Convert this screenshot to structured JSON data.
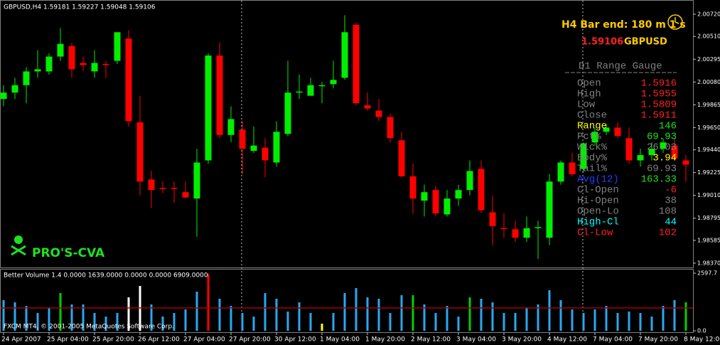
{
  "chart_data": [
    {
      "type": "candlestick",
      "title": "GBPUSD,H4  1.59181 1.59227 1.59048 1.59106",
      "categories": [
        "24 Apr 2007",
        null,
        null,
        null,
        "25 Apr 04:00",
        null,
        null,
        null,
        "25 Apr 20:00",
        null,
        null,
        null,
        "26 Apr 12:00",
        null,
        null,
        null,
        "27 Apr 04:00",
        null,
        null,
        null,
        "27 Apr 20:00",
        null,
        null,
        null,
        "30 Apr 12:00",
        null,
        null,
        null,
        "1 May 04:00",
        null,
        null,
        null,
        "1 May 20:00",
        null,
        null,
        null,
        "2 May 12:00",
        null,
        null,
        null,
        "3 May 04:00",
        null,
        null,
        null,
        "3 May 20:00",
        null,
        null,
        null,
        "4 May 12:00",
        null,
        null,
        null,
        "7 May 04:00",
        null,
        null,
        null,
        "7 May 20:00",
        null,
        null,
        null,
        "8 May 12:00"
      ],
      "open": [
        1.9992,
        1.9998,
        2.0005,
        2.0018,
        2.0018,
        2.0032,
        2.0042,
        2.0026,
        2.0018,
        2.0025,
        2.0028,
        2.0049,
        1.997,
        1.9916,
        1.9908,
        1.9908,
        1.9904,
        1.9898,
        1.9934,
        2.0033,
        1.9958,
        1.9963,
        1.9943,
        1.9946,
        1.9932,
        1.9959,
        1.9998,
        1.9995,
        2.0004,
        2.0006,
        2.0012,
        2.0062,
        1.9986,
        1.9981,
        1.9975,
        1.9953,
        1.9919,
        1.9896,
        1.9906,
        1.9883,
        1.9898,
        1.9906,
        1.9926,
        1.9885,
        1.987,
        1.9869,
        1.9861,
        1.987,
        1.9861,
        1.9914,
        1.9932,
        1.9926,
        1.9951,
        1.9961,
        1.9965,
        1.9955,
        1.9934,
        1.9939,
        1.9945,
        1.9948,
        1.9934
      ],
      "high": [
        2.0005,
        2.0012,
        2.0022,
        2.0038,
        2.0035,
        2.0059,
        2.0045,
        2.0032,
        2.0038,
        2.0028,
        2.0055,
        2.0057,
        1.9995,
        1.9924,
        1.9914,
        1.9914,
        1.9914,
        1.9945,
        2.0035,
        2.0045,
        1.9985,
        1.9971,
        1.9966,
        1.9955,
        1.9971,
        2.0028,
        2.0015,
        2.0012,
        2.0008,
        2.0028,
        2.0071,
        2.0064,
        1.9998,
        1.9992,
        1.9978,
        1.9961,
        1.9931,
        1.9911,
        1.991,
        1.9906,
        1.9911,
        1.9934,
        1.9934,
        1.9901,
        1.9884,
        1.9877,
        1.9881,
        1.9877,
        1.9921,
        1.9934,
        1.9941,
        1.9951,
        1.9965,
        1.9968,
        1.997,
        1.9965,
        1.9945,
        1.9951,
        1.9955,
        1.9955,
        1.9939
      ],
      "low": [
        1.9985,
        1.9992,
        1.9988,
        2.0012,
        2.0015,
        2.0028,
        2.0012,
        2.0018,
        2.0012,
        2.0012,
        2.0025,
        1.9966,
        1.9901,
        1.9889,
        1.9903,
        1.9894,
        1.9898,
        1.9862,
        1.9931,
        1.9955,
        1.9951,
        1.9921,
        1.9941,
        1.9918,
        1.9928,
        1.9957,
        1.9992,
        1.9995,
        1.9988,
        2.0002,
        2.001,
        1.9986,
        1.9981,
        1.9971,
        1.9951,
        1.9918,
        1.9884,
        1.9881,
        1.9881,
        1.9881,
        1.9891,
        1.9901,
        1.9884,
        1.9854,
        1.9861,
        1.9857,
        1.9857,
        1.9841,
        1.9854,
        1.9911,
        1.9919,
        1.9923,
        1.9948,
        1.9958,
        1.9955,
        1.9931,
        1.9928,
        1.9934,
        1.9941,
        1.9934,
        1.9914
      ],
      "close": [
        1.9998,
        2.0005,
        2.0018,
        2.002,
        2.0032,
        2.0044,
        2.002,
        2.0024,
        2.0026,
        2.0024,
        2.0055,
        1.9971,
        1.9914,
        1.9906,
        1.9907,
        1.9907,
        1.9899,
        1.9932,
        2.0033,
        1.9958,
        1.9973,
        1.9945,
        1.9948,
        1.9934,
        1.9961,
        1.9998,
        1.9999,
        2.0005,
        2.0005,
        2.001,
        2.0055,
        1.9988,
        1.9983,
        1.9975,
        1.9955,
        1.9919,
        1.9898,
        1.9904,
        1.9884,
        1.9898,
        1.9906,
        1.9924,
        1.9887,
        1.9872,
        1.9869,
        1.9861,
        1.987,
        1.9871,
        1.9914,
        1.9932,
        1.9921,
        1.995,
        1.9961,
        1.9965,
        1.9957,
        1.9934,
        1.9939,
        1.9945,
        1.9951,
        1.9936,
        1.993
      ],
      "up_color": "#00ee00",
      "down_color": "#ff0000",
      "ylim": [
        1.98336,
        2.00834
      ],
      "yticks": [
        {
          "value": 2.0072,
          "label": "2.00720"
        },
        {
          "value": 2.0051,
          "label": "2.00510"
        },
        {
          "value": 2.00295,
          "label": "2.00295"
        },
        {
          "value": 2.0008,
          "label": "2.00080"
        },
        {
          "value": 1.99865,
          "label": "1.99865"
        },
        {
          "value": 1.9965,
          "label": "1.99650"
        },
        {
          "value": 1.9944,
          "label": "1.99440"
        },
        {
          "value": 1.99225,
          "label": "1.99225"
        },
        {
          "value": 1.9901,
          "label": "1.99010"
        },
        {
          "value": 1.98795,
          "label": "1.98795"
        },
        {
          "value": 1.98585,
          "label": "1.98585"
        },
        {
          "value": 1.9837,
          "label": "1.98370"
        }
      ],
      "timer": "H4 Bar end: 180 m 1 s",
      "price": "1.59106",
      "symbol": "GBPUSD",
      "gauge_title": "D1 Range Gauge",
      "gauge": [
        {
          "label": "Open",
          "value": "1.5916",
          "label_color": "#808080",
          "value_color": "#ff2020"
        },
        {
          "label": "High",
          "value": "1.5955",
          "label_color": "#808080",
          "value_color": "#ff2020"
        },
        {
          "label": "Low",
          "value": "1.5809",
          "label_color": "#808080",
          "value_color": "#ff2020"
        },
        {
          "label": "Close",
          "value": "1.5911",
          "label_color": "#808080",
          "value_color": "#ff2020"
        },
        {
          "label": "Range",
          "value": "146",
          "label_color": "#ffff00",
          "value_color": "#20e020"
        },
        {
          "label": "Pct%",
          "value": "69.93",
          "label_color": "#808080",
          "value_color": "#20e020"
        },
        {
          "label": "Wick%",
          "value": "26.03",
          "label_color": "#808080",
          "value_color": "#808080"
        },
        {
          "label": "Body%",
          "value": "3.94",
          "label_color": "#808080",
          "value_color": "#ffff00"
        },
        {
          "label": "Tail%",
          "value": "69.93",
          "label_color": "#808080",
          "value_color": "#808080"
        },
        {
          "label": "Avg(12)",
          "value": "163.33",
          "label_color": "#2040ff",
          "value_color": "#20e020"
        },
        {
          "label": "Cl-Open",
          "value": "-6",
          "label_color": "#808080",
          "value_color": "#ff2020"
        },
        {
          "label": "Hi-Open",
          "value": "38",
          "label_color": "#808080",
          "value_color": "#808080"
        },
        {
          "label": "Open-Lo",
          "value": "108",
          "label_color": "#808080",
          "value_color": "#808080"
        },
        {
          "label": "High-Cl",
          "value": "44",
          "label_color": "#00ffff",
          "value_color": "#00ffff"
        },
        {
          "label": "Cl-Low",
          "value": "102",
          "label_color": "#ff2020",
          "value_color": "#ff2020"
        }
      ],
      "brand": "PRO'S-CVA"
    },
    {
      "type": "bar",
      "title": "Better Volume 1.4 0.0000 1639.0000 0.0000 0.0000 6909.0000",
      "values": [
        1379,
        1283,
        1122,
        802,
        1058,
        1700,
        1187,
        1187,
        802,
        641,
        802,
        1507,
        2020,
        1187,
        641,
        802,
        962,
        1764,
        2566,
        1443,
        1122,
        802,
        641,
        1700,
        1443,
        866,
        1283,
        802,
        321,
        802,
        1700,
        1924,
        1507,
        1443,
        802,
        1604,
        1604,
        1187,
        802,
        1122,
        641,
        1507,
        1443,
        1283,
        802,
        802,
        1058,
        1187,
        1828,
        1379,
        962,
        802,
        962,
        1122,
        802,
        866,
        802,
        641,
        1122,
        1379,
        1283
      ],
      "colors": [
        "#2aa8f0",
        "#2aa8f0",
        "#2aa8f0",
        "#2aa8f0",
        "#2aa8f0",
        "#00d000",
        "#2aa8f0",
        "#2aa8f0",
        "#2aa8f0",
        "#2aa8f0",
        "#2aa8f0",
        "#ffffff",
        "#ffffff",
        "#2aa8f0",
        "#2aa8f0",
        "#2aa8f0",
        "#2aa8f0",
        "#2aa8f0",
        "#ff0000",
        "#2aa8f0",
        "#2aa8f0",
        "#2aa8f0",
        "#2aa8f0",
        "#2aa8f0",
        "#2aa8f0",
        "#2aa8f0",
        "#2aa8f0",
        "#2aa8f0",
        "#ffff00",
        "#2aa8f0",
        "#2aa8f0",
        "#2aa8f0",
        "#2aa8f0",
        "#2aa8f0",
        "#2aa8f0",
        "#2aa8f0",
        "#00d000",
        "#2aa8f0",
        "#2aa8f0",
        "#2aa8f0",
        "#2aa8f0",
        "#00d000",
        "#2aa8f0",
        "#2aa8f0",
        "#2aa8f0",
        "#2aa8f0",
        "#2aa8f0",
        "#2aa8f0",
        "#2aa8f0",
        "#2aa8f0",
        "#2aa8f0",
        "#2aa8f0",
        "#2aa8f0",
        "#2aa8f0",
        "#2aa8f0",
        "#2aa8f0",
        "#2aa8f0",
        "#2aa8f0",
        "#2aa8f0",
        "#2aa8f0",
        "#00d000"
      ],
      "level": 1030,
      "level_color": "#a00000",
      "ylim": [
        0,
        2597.7
      ],
      "yticks": [
        {
          "value": 0,
          "label": "0.0"
        },
        2597.7
      ],
      "copyright": "FXCM MT4, © 2001-2005 MetaQuotes Software Corp."
    }
  ]
}
